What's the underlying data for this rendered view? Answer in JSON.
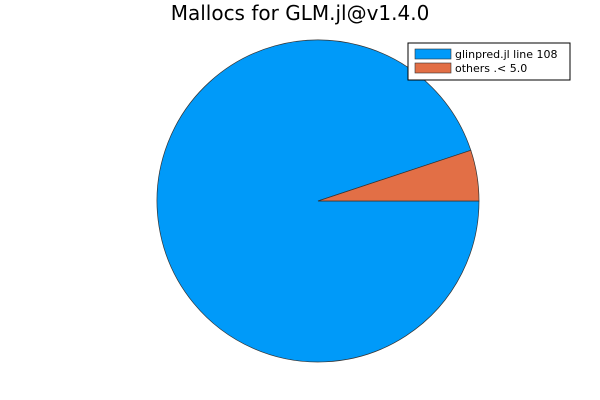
{
  "chart_data": {
    "type": "pie",
    "title": "Mallocs for GLM.jl@v1.4.0",
    "categories": [
      "glinpred.jl line 108",
      "others .< 5.0"
    ],
    "values": [
      94.9,
      5.1
    ],
    "colors": [
      "#009af9",
      "#e26f46"
    ],
    "legend": "top-right",
    "grid": false
  }
}
